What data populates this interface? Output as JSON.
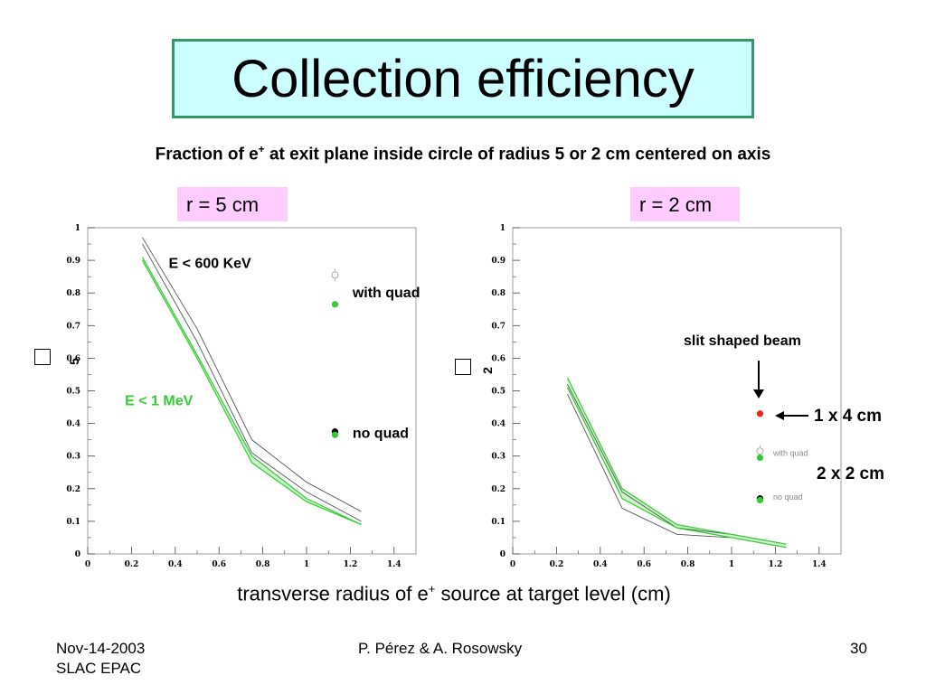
{
  "slide": {
    "title": "Collection efficiency",
    "subtitle_part1": "Fraction of e",
    "subtitle_sup": "+",
    "subtitle_part2": " at exit plane inside circle of radius 5 or 2 cm centered on axis",
    "xcaption_part1": "transverse radius of e",
    "xcaption_sup": "+",
    "xcaption_part2": " source at target level (cm)",
    "footer_left_line1": "Nov-14-2003",
    "footer_left_line2": "SLAC EPAC",
    "footer_center": "P. Pérez   &   A. Rosowsky",
    "footer_right": "30",
    "colors": {
      "title_bg": "#ccffff",
      "title_border": "#339966",
      "label_bg": "#ffccff",
      "green": "#33cc33",
      "red": "#ee2222"
    }
  },
  "chart_data": [
    {
      "type": "line",
      "panel_label": "r = 5 cm",
      "ylabel_symbol": "5",
      "xlim": [
        0,
        1.5
      ],
      "ylim": [
        0,
        1
      ],
      "xticks": [
        "0",
        "0.2",
        "0.4",
        "0.6",
        "0.8",
        "1",
        "1.2",
        "1.4"
      ],
      "yticks": [
        "0",
        "0.1",
        "0.2",
        "0.3",
        "0.4",
        "0.5",
        "0.6",
        "0.7",
        "0.8",
        "0.9",
        "1"
      ],
      "series": [
        {
          "color": "#555555",
          "x": [
            0.25,
            0.5,
            0.75,
            1.0,
            1.25
          ],
          "y": [
            0.97,
            0.69,
            0.35,
            0.22,
            0.13
          ]
        },
        {
          "color": "#555555",
          "x": [
            0.25,
            0.5,
            0.75,
            1.0,
            1.25
          ],
          "y": [
            0.95,
            0.65,
            0.31,
            0.19,
            0.1
          ]
        },
        {
          "color": "#33cc33",
          "x": [
            0.25,
            0.5,
            0.75,
            1.0,
            1.25
          ],
          "y": [
            0.91,
            0.61,
            0.3,
            0.17,
            0.09
          ]
        },
        {
          "color": "#33cc33",
          "x": [
            0.25,
            0.5,
            0.75,
            1.0,
            1.25
          ],
          "y": [
            0.9,
            0.6,
            0.28,
            0.16,
            0.09
          ]
        }
      ],
      "points": [
        {
          "x": 1.13,
          "y": 0.855,
          "color": "#ffffff",
          "hollow": true
        },
        {
          "x": 1.13,
          "y": 0.765,
          "color": "#33cc33"
        },
        {
          "x": 1.13,
          "y": 0.375,
          "color": "#000000"
        },
        {
          "x": 1.13,
          "y": 0.365,
          "color": "#33cc33"
        }
      ],
      "annotations": [
        {
          "text": "E < 600 KeV",
          "x": 0.37,
          "y": 0.89,
          "color": "#000000"
        },
        {
          "text": "with quad",
          "x": 1.21,
          "y": 0.8,
          "color": "#000000"
        },
        {
          "text": "E < 1 MeV",
          "x": 0.17,
          "y": 0.47,
          "color": "#33cc33"
        },
        {
          "text": "no quad",
          "x": 1.21,
          "y": 0.37,
          "color": "#000000"
        }
      ]
    },
    {
      "type": "line",
      "panel_label": "r = 2 cm",
      "ylabel_symbol": "2",
      "xlim": [
        0,
        1.5
      ],
      "ylim": [
        0,
        1
      ],
      "xticks": [
        "0",
        "0.2",
        "0.4",
        "0.6",
        "0.8",
        "1",
        "1.2",
        "1.4"
      ],
      "yticks": [
        "0",
        "0.1",
        "0.2",
        "0.3",
        "0.4",
        "0.5",
        "0.6",
        "0.7",
        "0.8",
        "0.9",
        "1"
      ],
      "series": [
        {
          "color": "#555555",
          "x": [
            0.25,
            0.5,
            0.75,
            1.0,
            1.25
          ],
          "y": [
            0.49,
            0.14,
            0.06,
            0.05,
            0.02
          ]
        },
        {
          "color": "#555555",
          "x": [
            0.25,
            0.5,
            0.75,
            1.0,
            1.25
          ],
          "y": [
            0.52,
            0.19,
            0.08,
            0.06,
            0.03
          ]
        },
        {
          "color": "#33cc33",
          "x": [
            0.25,
            0.5,
            0.75,
            1.0,
            1.25
          ],
          "y": [
            0.54,
            0.2,
            0.09,
            0.06,
            0.03
          ]
        },
        {
          "color": "#33cc33",
          "x": [
            0.25,
            0.5,
            0.75,
            1.0,
            1.25
          ],
          "y": [
            0.51,
            0.17,
            0.08,
            0.05,
            0.02
          ]
        }
      ],
      "points": [
        {
          "x": 1.13,
          "y": 0.43,
          "color": "#ee2222"
        },
        {
          "x": 1.13,
          "y": 0.315,
          "color": "#ffffff",
          "hollow": true
        },
        {
          "x": 1.13,
          "y": 0.295,
          "color": "#33cc33"
        },
        {
          "x": 1.13,
          "y": 0.17,
          "color": "#000000"
        },
        {
          "x": 1.13,
          "y": 0.165,
          "color": "#33cc33"
        }
      ],
      "annotations": [
        {
          "text": "with quad",
          "x": 1.19,
          "y": 0.315,
          "color": "#888888",
          "small": true
        },
        {
          "text": "no quad",
          "x": 1.19,
          "y": 0.18,
          "color": "#888888",
          "small": true
        }
      ]
    }
  ],
  "right_annotations": {
    "slit": "slit shaped beam",
    "one_by_four": "1 x 4 cm",
    "two_by_two": "2 x 2 cm"
  }
}
